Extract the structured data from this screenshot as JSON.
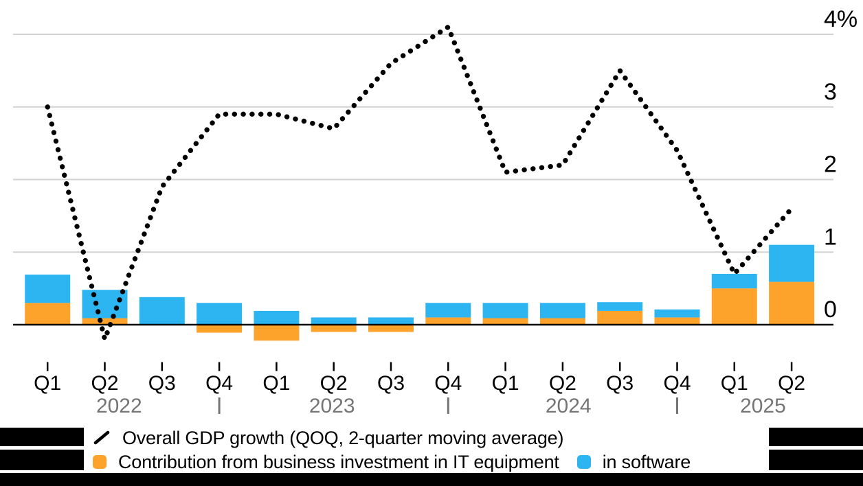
{
  "chart_data": {
    "type": "combo-stacked-bar-and-dotted-line",
    "unit": "%",
    "x_quarters": [
      "Q1",
      "Q2",
      "Q3",
      "Q4",
      "Q1",
      "Q2",
      "Q3",
      "Q4",
      "Q1",
      "Q2",
      "Q3",
      "Q4",
      "Q1",
      "Q2"
    ],
    "years": [
      {
        "label": "2022",
        "quarters": [
          0,
          3
        ]
      },
      {
        "label": "2023",
        "quarters": [
          4,
          7
        ]
      },
      {
        "label": "2024",
        "quarters": [
          8,
          11
        ]
      },
      {
        "label": "2025",
        "quarters": [
          12,
          13
        ]
      }
    ],
    "y_axis": {
      "side": "right",
      "ticks": [
        0,
        1,
        2,
        3,
        4
      ],
      "tick_labels": [
        "0",
        "1",
        "2",
        "3",
        "4%"
      ],
      "range": [
        -0.55,
        4.25
      ],
      "grid": true
    },
    "series": [
      {
        "name": "Overall GDP growth (QOQ, 2-quarter moving average)",
        "type": "line",
        "line_style": "dotted",
        "color": "#000000",
        "values": [
          3.0,
          -0.2,
          1.9,
          2.9,
          2.9,
          2.7,
          3.6,
          4.1,
          2.1,
          2.2,
          3.5,
          2.4,
          0.7,
          1.6
        ]
      },
      {
        "name": "Contribution from business investment in IT equipment",
        "type": "bar",
        "stack": "contribution",
        "color": "#FDA32B",
        "values": [
          0.3,
          0.09,
          0.0,
          -0.11,
          -0.22,
          -0.1,
          -0.1,
          0.1,
          0.09,
          0.09,
          0.19,
          0.1,
          0.5,
          0.59
        ]
      },
      {
        "name": "in software",
        "type": "bar",
        "stack": "contribution",
        "color": "#2CB5F1",
        "values": [
          0.39,
          0.39,
          0.38,
          0.3,
          0.19,
          0.1,
          0.1,
          0.2,
          0.21,
          0.21,
          0.12,
          0.11,
          0.2,
          0.51
        ]
      }
    ]
  },
  "legend": {
    "items": [
      {
        "label": "Overall GDP growth (QOQ, 2-quarter moving average)",
        "marker": "line",
        "color": "#000000"
      },
      {
        "label": "Contribution from business investment in IT equipment",
        "marker": "square",
        "color": "#FDA32B"
      },
      {
        "label": "in software",
        "marker": "square",
        "color": "#2CB5F1"
      }
    ]
  },
  "colors": {
    "orange": "#FDA32B",
    "blue": "#2CB5F1",
    "line": "#000000",
    "grid": "#D2D2D2",
    "zero_axis": "#000000",
    "year_text": "#757575",
    "footer_band": "#000000"
  }
}
